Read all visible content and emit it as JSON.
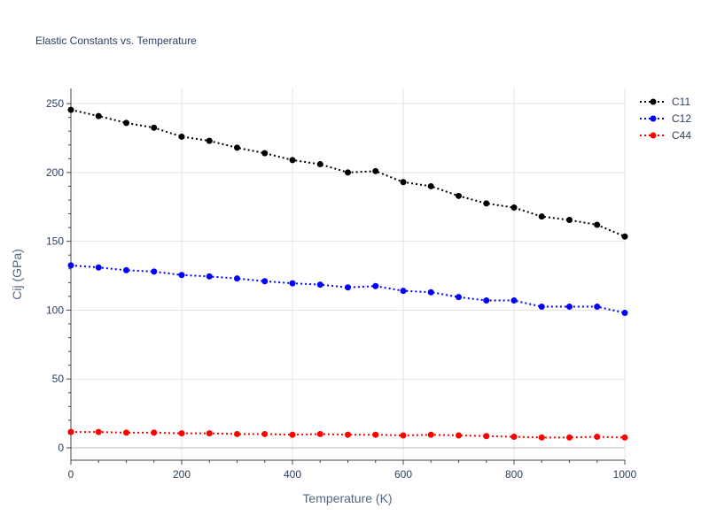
{
  "chart_data": {
    "type": "line",
    "title": "Elastic Constants vs. Temperature",
    "xlabel": "Temperature (K)",
    "ylabel": "Cij (GPa)",
    "xlim": [
      0,
      1000
    ],
    "ylim": [
      -9,
      261
    ],
    "x_ticks": [
      0,
      200,
      400,
      600,
      800,
      1000
    ],
    "y_ticks": [
      0,
      50,
      100,
      150,
      200,
      250
    ],
    "grid": true,
    "legend_position": "top-right",
    "x": [
      0,
      50,
      100,
      150,
      200,
      250,
      300,
      350,
      400,
      450,
      500,
      550,
      600,
      650,
      700,
      750,
      800,
      850,
      900,
      950,
      1000
    ],
    "series": [
      {
        "name": "C11",
        "color": "#000000",
        "line_style": "dotted",
        "marker": "circle",
        "values": [
          245.5,
          241,
          236,
          232.5,
          226,
          223,
          218,
          214,
          209,
          206,
          200,
          201,
          193,
          190,
          183,
          177.5,
          174.5,
          168,
          165.5,
          162,
          153.5
        ]
      },
      {
        "name": "C12",
        "color": "#0000ff",
        "line_style": "dotted",
        "marker": "circle",
        "values": [
          132.5,
          131,
          129,
          128,
          125.5,
          124.5,
          123,
          121,
          119.5,
          118.5,
          116.5,
          117.5,
          114,
          113,
          109.5,
          107,
          107,
          102.5,
          102.5,
          102.5,
          98
        ]
      },
      {
        "name": "C44",
        "color": "#ff0000",
        "line_style": "dotted",
        "marker": "circle",
        "values": [
          11.5,
          11.5,
          11,
          11,
          10.5,
          10.5,
          10,
          10,
          9.5,
          10,
          9.5,
          9.5,
          9,
          9.5,
          9,
          8.5,
          8,
          7.5,
          7.5,
          8,
          7.5
        ]
      }
    ]
  }
}
